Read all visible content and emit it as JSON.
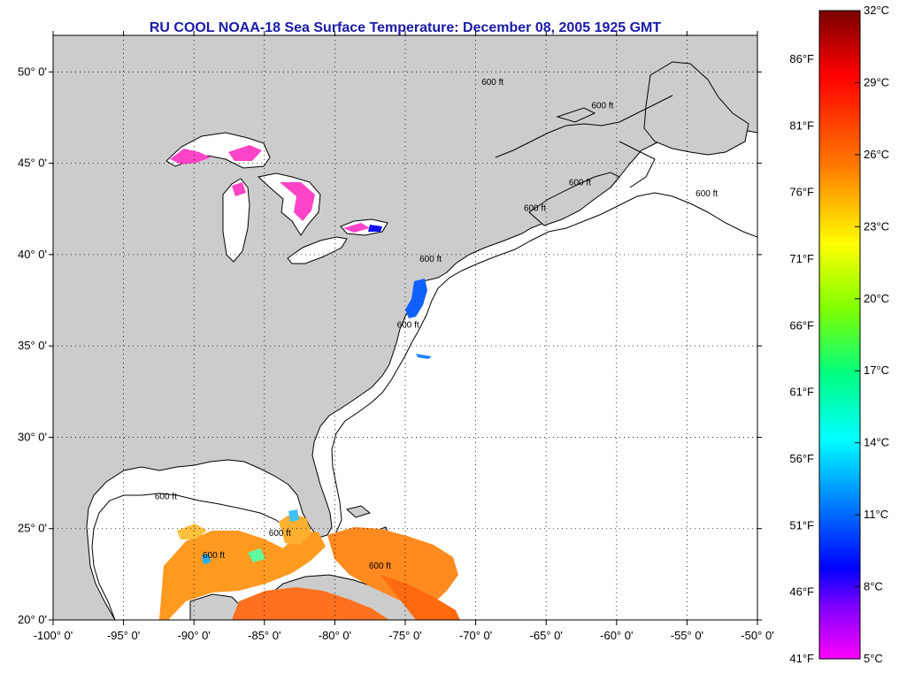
{
  "title": "RU COOL  NOAA-18  Sea Surface Temperature:  December 08, 2005 1925 GMT",
  "map": {
    "lon_range": [
      -100,
      -50
    ],
    "lat_range": [
      20,
      52
    ],
    "lat_ticks": [
      {
        "value": 50,
        "label": "50° 0'"
      },
      {
        "value": 45,
        "label": "45° 0'"
      },
      {
        "value": 40,
        "label": "40° 0'"
      },
      {
        "value": 35,
        "label": "35° 0'"
      },
      {
        "value": 30,
        "label": "30° 0'"
      },
      {
        "value": 25,
        "label": "25° 0'"
      },
      {
        "value": 20,
        "label": "20° 0'"
      }
    ],
    "lon_ticks": [
      {
        "value": -100,
        "label": "-100° 0'"
      },
      {
        "value": -95,
        "label": "-95° 0'"
      },
      {
        "value": -90,
        "label": "-90° 0'"
      },
      {
        "value": -85,
        "label": "-85° 0'"
      },
      {
        "value": -80,
        "label": "-80° 0'"
      },
      {
        "value": -75,
        "label": "-75° 0'"
      },
      {
        "value": -70,
        "label": "-70° 0'"
      },
      {
        "value": -65,
        "label": "-65° 0'"
      },
      {
        "value": -60,
        "label": "-60° 0'"
      },
      {
        "value": -55,
        "label": "-55° 0'"
      },
      {
        "value": -50,
        "label": "-50° 0'"
      }
    ],
    "grid": "dotted",
    "land_color": "#cccccc",
    "ocean_color": "#ffffff",
    "isobath_label": "600 ft",
    "isobath_labels": [
      {
        "text": "600 ft",
        "lon": -92.0,
        "lat": 26.6
      },
      {
        "text": "600 ft",
        "lon": -83.9,
        "lat": 24.6
      },
      {
        "text": "600 ft",
        "lon": -88.6,
        "lat": 23.4
      },
      {
        "text": "600 ft",
        "lon": -74.8,
        "lat": 36.0
      },
      {
        "text": "600 ft",
        "lon": -73.2,
        "lat": 39.6
      },
      {
        "text": "600 ft",
        "lon": -65.8,
        "lat": 42.4
      },
      {
        "text": "600 ft",
        "lon": -62.6,
        "lat": 43.8
      },
      {
        "text": "600 ft",
        "lon": -53.6,
        "lat": 43.2
      },
      {
        "text": "600 ft",
        "lon": -68.8,
        "lat": 49.3
      },
      {
        "text": "600 ft",
        "lon": -61.0,
        "lat": 48.0
      },
      {
        "text": "600 ft",
        "lon": -76.8,
        "lat": 22.8
      }
    ]
  },
  "colorbar": {
    "celsius_labels": [
      "32°C",
      "29°C",
      "26°C",
      "23°C",
      "20°C",
      "17°C",
      "14°C",
      "11°C",
      "8°C",
      "5°C"
    ],
    "fahrenheit_labels": [
      "86°F",
      "81°F",
      "76°F",
      "71°F",
      "66°F",
      "61°F",
      "56°F",
      "51°F",
      "46°F",
      "41°F"
    ],
    "gradient": [
      "#7a0000",
      "#ff0000",
      "#ff7a00",
      "#ffff00",
      "#80ff00",
      "#00ff80",
      "#00ffff",
      "#0080ff",
      "#0000ff",
      "#8000ff",
      "#ff00ff"
    ],
    "range_celsius": [
      5,
      32
    ]
  }
}
